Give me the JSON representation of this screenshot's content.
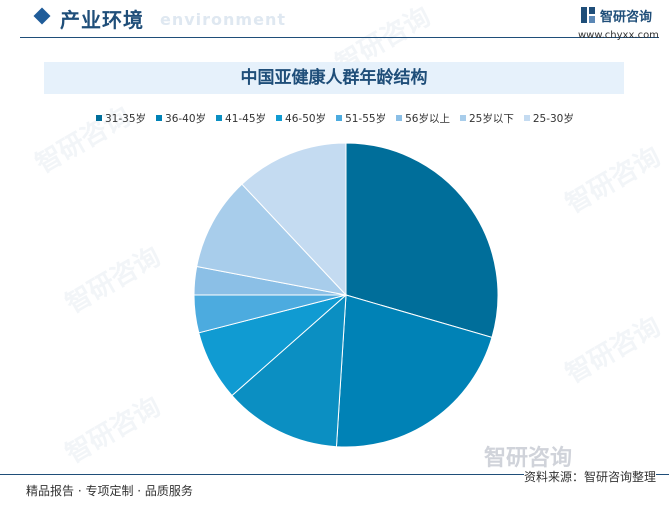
{
  "header": {
    "title": "产业环境",
    "subtitle": "environment",
    "logo_name": "智研咨询",
    "logo_url": "www.chyxx.com"
  },
  "chart_data": {
    "type": "pie",
    "title": "中国亚健康人群年龄结构",
    "categories": [
      "31-35岁",
      "36-40岁",
      "41-45岁",
      "46-50岁",
      "51-55岁",
      "56岁以上",
      "25岁以下",
      "25-30岁"
    ],
    "values": [
      29.5,
      21.5,
      12.5,
      7.5,
      4.0,
      3.0,
      10.0,
      12.0
    ],
    "colors": [
      "#006e9a",
      "#0082b6",
      "#0b8fc2",
      "#109bd2",
      "#4cabdf",
      "#8bbfe6",
      "#a8cdeb",
      "#c4dbf1"
    ],
    "start_angle_deg": 0,
    "direction": "clockwise",
    "legend_position": "top"
  },
  "watermark": {
    "text": "智研咨询",
    "bottom_text": "智研咨询"
  },
  "footer": {
    "left": "精品报告 · 专项定制 · 品质服务",
    "right": "资料来源：智研咨询整理"
  }
}
